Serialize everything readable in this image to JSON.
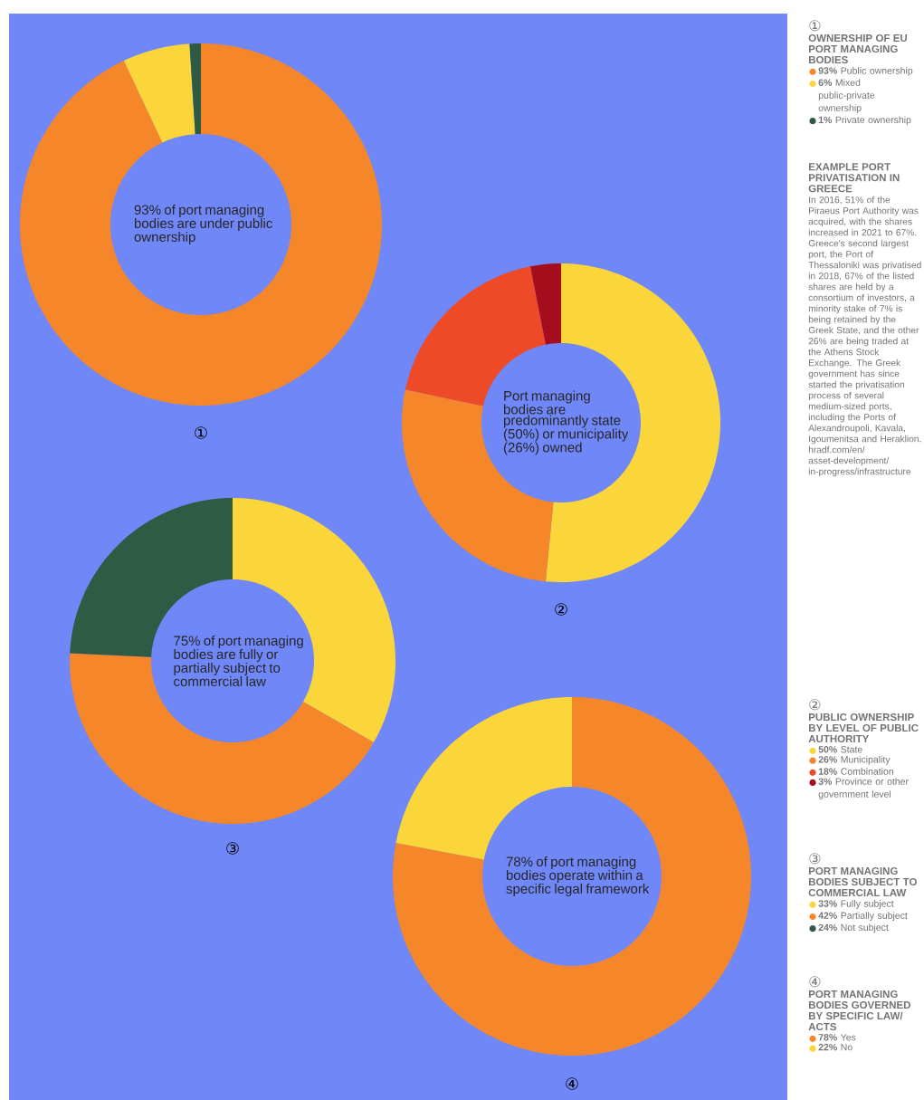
{
  "chart_data": [
    {
      "type": "donut",
      "title": "OWNERSHIP OF EU PORT MANAGING BODIES",
      "subtitle": "①",
      "categories": [
        "**93%** Public ownership",
        "**6%** Mixed public-private ownership",
        "**1%** Private ownership"
      ],
      "values": [
        93,
        6,
        1
      ],
      "colors": [
        "#f5862a",
        "#fbd63a",
        "#2f5a44"
      ],
      "legend": "top right",
      "annotations": [
        "93% of port managing bodies are under public ownership"
      ]
    },
    {
      "type": "other",
      "title": "EXAMPLE PORT PRIVATISATION IN GREECE",
      "annotations": [
        "In 2016, 51% of the Piraeus Port Authority was acquired, with the shares increased in 2021 to 67%. Greece's second largest port, the Port of Thessaloniki was privatised in 2018, 67% of the listed shares are held by a consortium of investors, a minority stake of 7% is being retained by the Greek State, and the other 26% are being traded at the Athens Stock Exchange. The Greek government has since started the privatisation process of several medium-sized ports, including the Ports of Alexandroupoli, Kavala, Igoumenitsa and Heraklion.",
        "hradf.com/en/asset-development/in-progress/infrastructure"
      ]
    },
    {
      "type": "donut",
      "title": "PUBLIC OWNERSHIP BY LEVEL OF PUBLIC AUTHORITY",
      "subtitle": "②",
      "categories": [
        "**50%** State",
        "**26%** Municipality",
        "**18%** Combination",
        "**3%** Province or other government level"
      ],
      "values": [
        50,
        26,
        18,
        3
      ],
      "colors": [
        "#fbd63a",
        "#f5862a",
        "#ee4a28",
        "#a50d1c"
      ],
      "legend": "bottom right",
      "annotations": [
        "Port managing bodies are predominantly state (50%) or municipality (26%) owned"
      ]
    },
    {
      "type": "donut",
      "title": "PORT MANAGING BODIES SUBJECT TO COMMERCIAL LAW",
      "subtitle": "③",
      "categories": [
        "**33%** Fully subject",
        "**42%** Partially subject",
        "**24%** Not subject"
      ],
      "values": [
        33,
        42,
        24
      ],
      "colors": [
        "#fbd63a",
        "#f5862a",
        "#2f5a44"
      ],
      "legend": "bottom right",
      "annotations": [
        "75% of port managing bodies are fully or partially subject to commercial law"
      ]
    },
    {
      "type": "donut",
      "title": "PORT MANAGING BODIES GOVERNED BY SPECIFIC LAW/ ACTS",
      "subtitle": "④",
      "categories": [
        "**78%** Yes",
        "**22%** No"
      ],
      "values": [
        78,
        22
      ],
      "colors": [
        "#f5862a",
        "#fbd63a"
      ],
      "legend": "bottom right",
      "annotations": [
        "78% of port managing bodies operate within a specific legal framework"
      ]
    }
  ]
}
